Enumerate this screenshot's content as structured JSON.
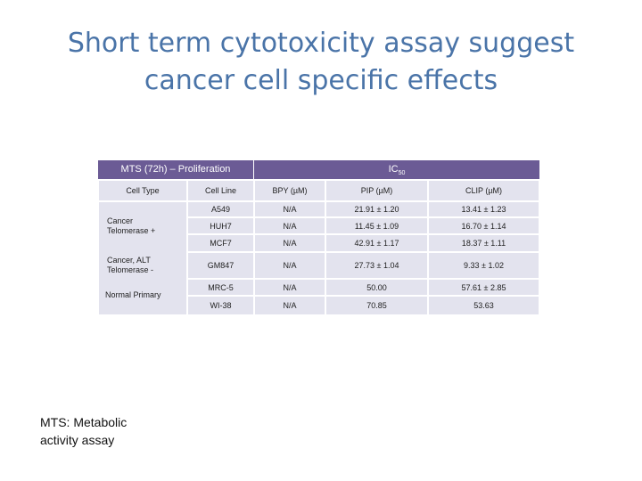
{
  "title": {
    "line1": "Short term cytotoxicity assay suggest",
    "line2": "cancer cell specific effects"
  },
  "table": {
    "header_left": "MTS (72h) – Proliferation",
    "header_right": "IC",
    "header_right_sub": "50",
    "columns": [
      "Cell Type",
      "Cell Line",
      "BPY (µM)",
      "PIP (µM)",
      "CLIP (µM)"
    ],
    "cell_types": {
      "cancer_telomerase": [
        "Cancer",
        "Telomerase +"
      ],
      "cancer_alt": [
        "Cancer, ALT",
        "Telomerase -"
      ],
      "normal": [
        "Normal Primary"
      ]
    },
    "rows": [
      {
        "line": "A549",
        "bpy": "N/A",
        "pip": "21.91 ± 1.20",
        "clip": "13.41 ± 1.23"
      },
      {
        "line": "HUH7",
        "bpy": "N/A",
        "pip": "11.45 ± 1.09",
        "clip": "16.70 ± 1.14"
      },
      {
        "line": "MCF7",
        "bpy": "N/A",
        "pip": "42.91 ± 1.17",
        "clip": "18.37 ± 1.11"
      },
      {
        "line": "GM847",
        "bpy": "N/A",
        "pip": "27.73 ± 1.04",
        "clip": "9.33 ± 1.02"
      },
      {
        "line": "MRC-5",
        "bpy": "N/A",
        "pip": "50.00",
        "clip": "57.61 ± 2.85"
      },
      {
        "line": "WI-38",
        "bpy": "N/A",
        "pip": "70.85",
        "clip": "53.63"
      }
    ]
  },
  "footnote": {
    "line1": "MTS: Metabolic",
    "line2": "activity assay"
  }
}
